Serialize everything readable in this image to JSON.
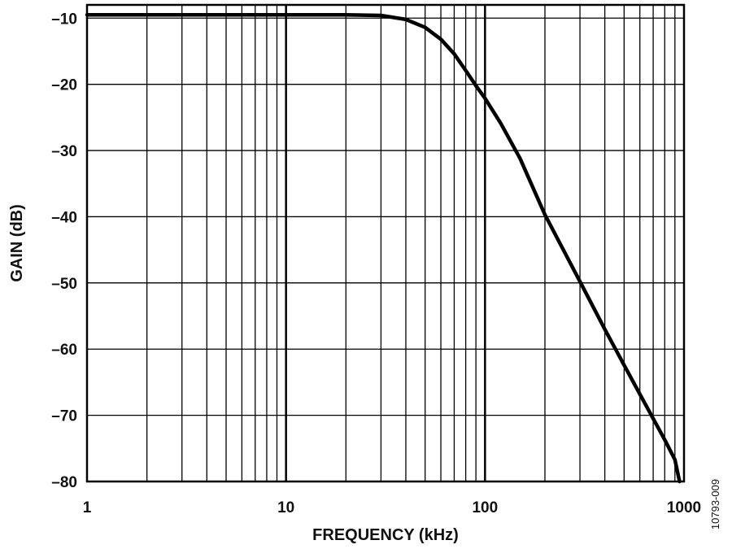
{
  "chart_data": {
    "type": "line",
    "xlabel": "FREQUENCY (kHz)",
    "ylabel": "GAIN (dB)",
    "xscale": "log",
    "xlim": [
      1,
      1000
    ],
    "ylim": [
      -80,
      -8
    ],
    "x_ticks": [
      1,
      10,
      100,
      1000
    ],
    "x_tick_labels": [
      "1",
      "10",
      "100",
      "1000"
    ],
    "y_ticks": [
      -10,
      -20,
      -30,
      -40,
      -50,
      -60,
      -70,
      -80
    ],
    "y_tick_labels": [
      "–10",
      "–20",
      "–30",
      "–40",
      "–50",
      "–60",
      "–70",
      "–80"
    ],
    "grid": true,
    "series": [
      {
        "color": "#000000",
        "x": [
          1,
          2,
          5,
          10,
          20,
          30,
          40,
          50,
          60,
          70,
          80,
          90,
          100,
          120,
          150,
          200,
          300,
          400,
          500,
          600,
          700,
          800,
          900,
          950
        ],
        "y": [
          -9.5,
          -9.5,
          -9.5,
          -9.5,
          -9.5,
          -9.6,
          -10.2,
          -11.4,
          -13.2,
          -15.4,
          -17.9,
          -20.2,
          -22.1,
          -25.9,
          -31.2,
          -39.7,
          -49.8,
          -57.0,
          -62.4,
          -66.8,
          -70.5,
          -73.7,
          -76.7,
          -80.0
        ]
      }
    ],
    "figure_id": "10793-009"
  }
}
